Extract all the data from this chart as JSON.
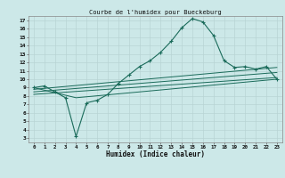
{
  "title": "Courbe de l'humidex pour Bueckeburg",
  "xlabel": "Humidex (Indice chaleur)",
  "bg_color": "#cce8e8",
  "grid_color": "#b8d4d4",
  "line_color": "#1a6b5a",
  "xlim": [
    -0.5,
    23.5
  ],
  "ylim": [
    2.5,
    17.5
  ],
  "xticks": [
    0,
    1,
    2,
    3,
    4,
    5,
    6,
    7,
    8,
    9,
    10,
    11,
    12,
    13,
    14,
    15,
    16,
    17,
    18,
    19,
    20,
    21,
    22,
    23
  ],
  "yticks": [
    3,
    4,
    5,
    6,
    7,
    8,
    9,
    10,
    11,
    12,
    13,
    14,
    15,
    16,
    17
  ],
  "curve1_x": [
    0,
    1,
    2,
    3,
    4,
    5,
    6,
    7,
    8,
    9,
    10,
    11,
    12,
    13,
    14,
    15,
    16,
    17,
    18,
    19,
    20,
    21,
    22,
    23
  ],
  "curve1_y": [
    9.0,
    9.2,
    8.5,
    7.8,
    3.2,
    7.2,
    7.5,
    8.2,
    9.5,
    10.5,
    11.5,
    12.2,
    13.2,
    14.5,
    16.1,
    17.2,
    16.8,
    15.2,
    12.2,
    11.4,
    11.5,
    11.2,
    11.5,
    10.0
  ],
  "curve2_x": [
    0,
    4,
    23
  ],
  "curve2_y": [
    9.0,
    7.8,
    10.0
  ],
  "curve3_x": [
    0,
    23
  ],
  "curve3_y": [
    8.8,
    11.4
  ],
  "curve4_x": [
    0,
    23
  ],
  "curve4_y": [
    8.5,
    10.8
  ],
  "curve5_x": [
    0,
    23
  ],
  "curve5_y": [
    8.2,
    10.2
  ]
}
